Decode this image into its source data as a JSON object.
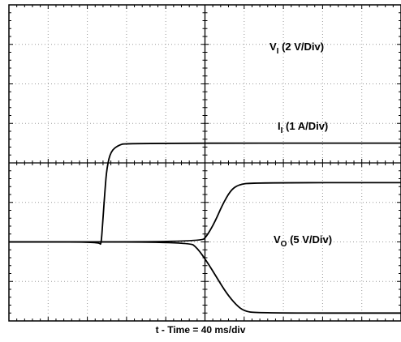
{
  "chart_data": {
    "type": "line",
    "display": "oscilloscope",
    "grid": true,
    "divisions": {
      "x": 10,
      "y": 8
    },
    "time_axis_label": "t - Time = 40 ms/div",
    "series": [
      {
        "name_main": "V",
        "name_sub": "I",
        "name_rest": " (2 V/Div)",
        "scale": "2 V/div",
        "color": "#000000",
        "points_div": [
          [
            0,
            2.0
          ],
          [
            2.3,
            2.0
          ],
          [
            2.35,
            1.9
          ],
          [
            2.4,
            2.6
          ],
          [
            2.45,
            3.3
          ],
          [
            2.5,
            3.9
          ],
          [
            2.6,
            4.3
          ],
          [
            2.8,
            4.45
          ],
          [
            3.0,
            4.5
          ],
          [
            10,
            4.5
          ]
        ]
      },
      {
        "name_main": "I",
        "name_sub": "I",
        "name_rest": " (1 A/Div)",
        "scale": "1 A/div",
        "color": "#000000",
        "points_div": [
          [
            0,
            2.0
          ],
          [
            4.9,
            2.0
          ],
          [
            5.05,
            2.15
          ],
          [
            5.25,
            2.5
          ],
          [
            5.45,
            2.95
          ],
          [
            5.65,
            3.3
          ],
          [
            5.85,
            3.45
          ],
          [
            6.2,
            3.5
          ],
          [
            10,
            3.5
          ]
        ]
      },
      {
        "name_main": "V",
        "name_sub": "O",
        "name_rest": " (5 V/Div)",
        "scale": "5 V/div",
        "color": "#000000",
        "points_div": [
          [
            0,
            2.0
          ],
          [
            4.6,
            2.0
          ],
          [
            4.8,
            1.85
          ],
          [
            5.05,
            1.5
          ],
          [
            5.3,
            1.1
          ],
          [
            5.55,
            0.7
          ],
          [
            5.8,
            0.4
          ],
          [
            6.0,
            0.25
          ],
          [
            6.3,
            0.2
          ],
          [
            10,
            0.2
          ]
        ]
      }
    ]
  }
}
